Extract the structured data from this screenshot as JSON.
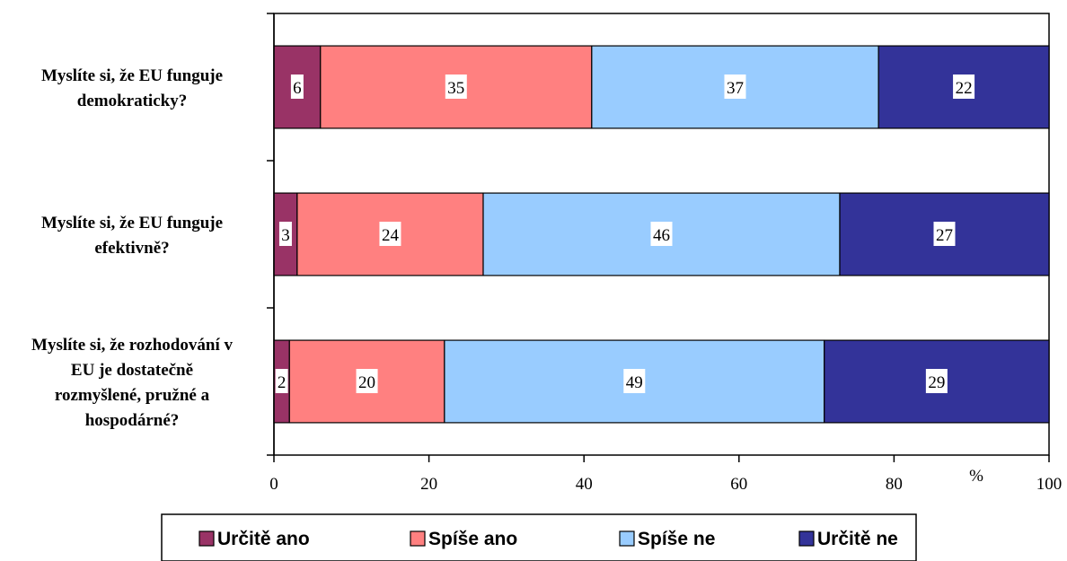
{
  "chart_data": {
    "type": "bar",
    "orientation": "horizontal",
    "stacked": true,
    "categories": [
      [
        "Myslíte si, že EU funguje",
        "demokraticky?"
      ],
      [
        "Myslíte si, že EU funguje",
        "efektivně?"
      ],
      [
        "Myslíte si, že rozhodování v",
        "EU je dostatečně",
        "rozmyšlené, pružné a",
        "hospodárné?"
      ]
    ],
    "series": [
      {
        "name": "Určitě ano",
        "color": "#993366",
        "values": [
          6,
          3,
          2
        ]
      },
      {
        "name": "Spíše ano",
        "color": "#FF8080",
        "values": [
          35,
          24,
          20
        ]
      },
      {
        "name": "Spíše ne",
        "color": "#99CCFF",
        "values": [
          37,
          46,
          49
        ]
      },
      {
        "name": "Určitě ne",
        "color": "#333399",
        "values": [
          22,
          27,
          29
        ]
      }
    ],
    "xlim": [
      0,
      100
    ],
    "xticks": [
      "0",
      "20",
      "40",
      "60",
      "80",
      "100"
    ],
    "xunit": "%",
    "grid": false,
    "legend_position": "bottom"
  }
}
